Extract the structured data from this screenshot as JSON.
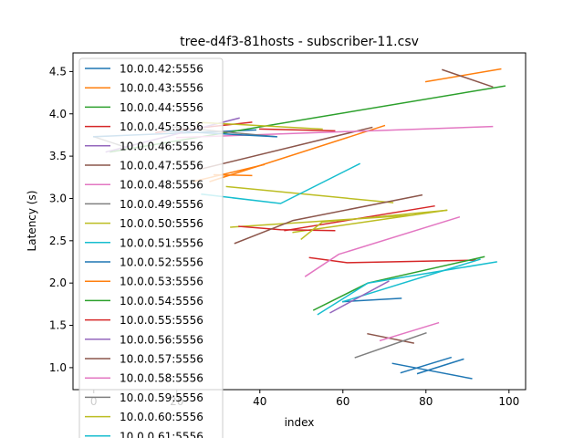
{
  "chart_data": {
    "type": "line",
    "title": "tree-d4f3-81hosts - subscriber-11.csv",
    "xlabel": "index",
    "ylabel": "Latency (s)",
    "xlim": [
      -5,
      104
    ],
    "ylim": [
      0.74,
      4.72
    ],
    "xticks": [
      0,
      20,
      40,
      60,
      80,
      100
    ],
    "yticks": [
      1.0,
      1.5,
      2.0,
      2.5,
      3.0,
      3.5,
      4.0,
      4.5
    ],
    "legend_position": "upper-left",
    "series": [
      {
        "name": "10.0.0.42:5556",
        "color": "#1f77b4",
        "x": [
          0,
          39
        ],
        "y": [
          3.73,
          3.81
        ]
      },
      {
        "name": "10.0.0.43:5556",
        "color": "#ff7f0e",
        "x": [
          80,
          98
        ],
        "y": [
          4.38,
          4.53
        ]
      },
      {
        "name": "10.0.0.44:5556",
        "color": "#2ca02c",
        "x": [
          4,
          99
        ],
        "y": [
          3.55,
          4.33
        ]
      },
      {
        "name": "10.0.0.45:5556",
        "color": "#d62728",
        "x": [
          15,
          38
        ],
        "y": [
          3.78,
          3.9
        ]
      },
      {
        "name": "10.0.0.46:5556",
        "color": "#9467bd",
        "x": [
          3,
          35
        ],
        "y": [
          3.55,
          3.95
        ]
      },
      {
        "name": "10.0.0.47:5556",
        "color": "#8c564b",
        "x": [
          84,
          96
        ],
        "y": [
          4.52,
          4.32
        ]
      },
      {
        "name": "10.0.0.48:5556",
        "color": "#e377c2",
        "x": [
          20,
          96
        ],
        "y": [
          3.72,
          3.85
        ]
      },
      {
        "name": "10.0.0.49:5556",
        "color": "#7f7f7f",
        "x": [
          18,
          44
        ],
        "y": [
          3.85,
          3.73
        ]
      },
      {
        "name": "10.0.0.50:5556",
        "color": "#bcbd22",
        "x": [
          25,
          55
        ],
        "y": [
          3.9,
          3.82
        ]
      },
      {
        "name": "10.0.0.51:5556",
        "color": "#17becf",
        "x": [
          26,
          45,
          64
        ],
        "y": [
          3.05,
          2.94,
          3.41
        ]
      },
      {
        "name": "10.0.0.52:5556",
        "color": "#1f77b4",
        "x": [
          17,
          44
        ],
        "y": [
          3.8,
          3.73
        ]
      },
      {
        "name": "10.0.0.53:5556",
        "color": "#ff7f0e",
        "x": [
          24,
          41
        ],
        "y": [
          3.2,
          3.4
        ]
      },
      {
        "name": "10.0.0.54:5556",
        "color": "#2ca02c",
        "x": [
          53,
          66,
          94
        ],
        "y": [
          1.68,
          2.0,
          2.31
        ]
      },
      {
        "name": "10.0.0.55:5556",
        "color": "#d62728",
        "x": [
          35,
          45,
          58
        ],
        "y": [
          2.67,
          2.63,
          2.62
        ]
      },
      {
        "name": "10.0.0.56:5556",
        "color": "#9467bd",
        "x": [
          57,
          71
        ],
        "y": [
          1.65,
          2.02
        ]
      },
      {
        "name": "10.0.0.57:5556",
        "color": "#8c564b",
        "x": [
          34,
          48,
          79
        ],
        "y": [
          2.47,
          2.74,
          3.04
        ]
      },
      {
        "name": "10.0.0.58:5556",
        "color": "#e377c2",
        "x": [
          51,
          59,
          88
        ],
        "y": [
          2.08,
          2.34,
          2.78
        ]
      },
      {
        "name": "10.0.0.59:5556",
        "color": "#7f7f7f",
        "x": [
          63,
          80
        ],
        "y": [
          1.12,
          1.41
        ]
      },
      {
        "name": "10.0.0.60:5556",
        "color": "#bcbd22",
        "x": [
          50,
          55,
          85
        ],
        "y": [
          2.52,
          2.72,
          2.86
        ]
      },
      {
        "name": "10.0.0.61:5556",
        "color": "#17becf",
        "x": [
          54,
          66,
          97
        ],
        "y": [
          1.63,
          2.0,
          2.25
        ]
      }
    ],
    "extra_lines": [
      {
        "color": "#1f77b4",
        "x": [
          72,
          91
        ],
        "y": [
          1.05,
          0.87
        ]
      },
      {
        "color": "#1f77b4",
        "x": [
          74,
          86
        ],
        "y": [
          0.94,
          1.12
        ]
      },
      {
        "color": "#1f77b4",
        "x": [
          78,
          89
        ],
        "y": [
          0.93,
          1.1
        ]
      },
      {
        "color": "#1f77b4",
        "x": [
          60,
          74
        ],
        "y": [
          1.78,
          1.82
        ]
      },
      {
        "color": "#ff7f0e",
        "x": [
          28,
          70
        ],
        "y": [
          3.2,
          3.86
        ]
      },
      {
        "color": "#ff7f0e",
        "x": [
          29,
          38
        ],
        "y": [
          3.28,
          3.27
        ]
      },
      {
        "color": "#bcbd22",
        "x": [
          32,
          72
        ],
        "y": [
          3.14,
          2.95
        ]
      },
      {
        "color": "#bcbd22",
        "x": [
          33,
          76
        ],
        "y": [
          2.66,
          2.8
        ]
      },
      {
        "color": "#bcbd22",
        "x": [
          48,
          85
        ],
        "y": [
          2.6,
          2.86
        ]
      },
      {
        "color": "#d62728",
        "x": [
          52,
          61,
          92
        ],
        "y": [
          2.3,
          2.24,
          2.27
        ]
      },
      {
        "color": "#d62728",
        "x": [
          46,
          82
        ],
        "y": [
          2.62,
          2.91
        ]
      },
      {
        "color": "#d62728",
        "x": [
          40,
          58
        ],
        "y": [
          3.82,
          3.8
        ]
      },
      {
        "color": "#8c564b",
        "x": [
          26,
          67
        ],
        "y": [
          3.35,
          3.84
        ]
      },
      {
        "color": "#8c564b",
        "x": [
          66,
          77
        ],
        "y": [
          1.4,
          1.29
        ]
      },
      {
        "color": "#e377c2",
        "x": [
          69,
          83
        ],
        "y": [
          1.32,
          1.53
        ]
      },
      {
        "color": "#17becf",
        "x": [
          60,
          93
        ],
        "y": [
          1.78,
          2.28
        ]
      },
      {
        "color": "#7f7f7f",
        "x": [
          0,
          8
        ],
        "y": [
          3.73,
          3.6
        ]
      }
    ]
  }
}
